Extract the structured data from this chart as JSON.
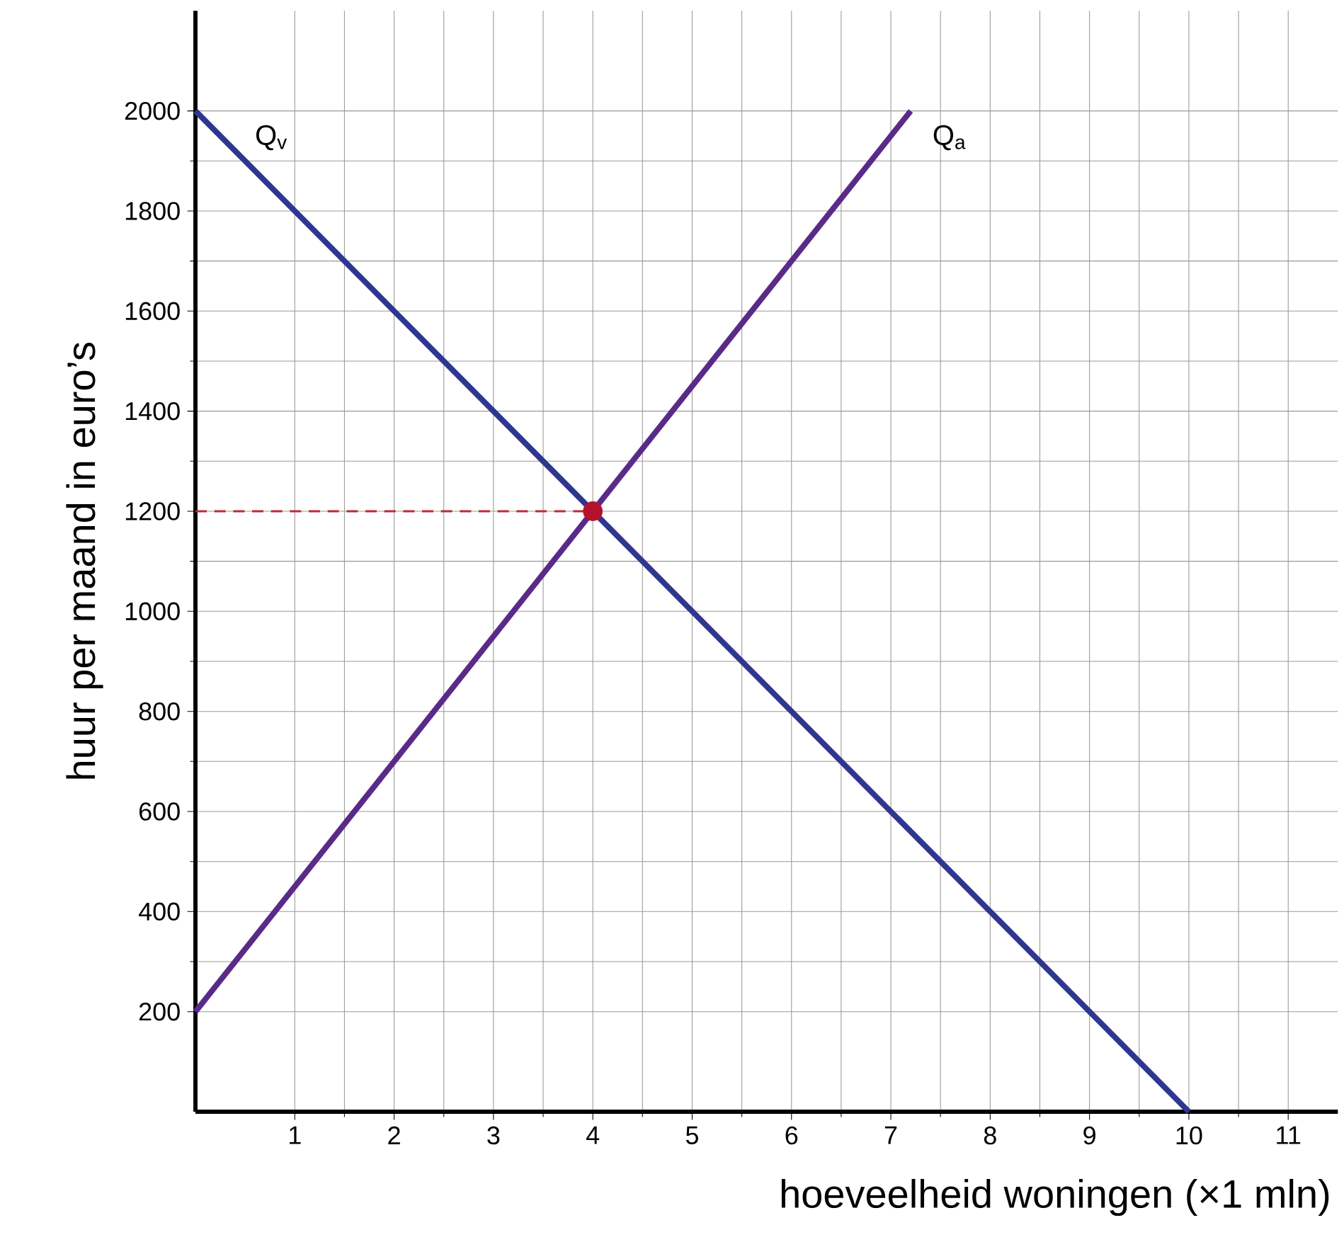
{
  "chart_data": {
    "type": "line",
    "xlabel": "hoeveelheid woningen (×1 mln)",
    "ylabel": "huur per maand in euro’s",
    "xlim": [
      0,
      11.5
    ],
    "ylim": [
      0,
      2200
    ],
    "xticks": [
      1,
      2,
      3,
      4,
      5,
      6,
      7,
      8,
      9,
      10,
      11
    ],
    "yticks": [
      200,
      400,
      600,
      800,
      1000,
      1200,
      1400,
      1600,
      1800,
      2000
    ],
    "grid": true,
    "series": [
      {
        "name": "Q$_{v}$",
        "color": "#2e3790",
        "x": [
          0,
          10
        ],
        "values": [
          2000,
          0
        ]
      },
      {
        "name": "Q$_{a}$",
        "color": "#5a2a88",
        "x": [
          0,
          7.2
        ],
        "values": [
          200,
          2000
        ]
      },
      {
        "type": "line",
        "line_style": "dashed",
        "color": "#c0283a",
        "x": [
          0,
          4
        ],
        "values": [
          1200,
          1200
        ]
      },
      {
        "type": "scatter",
        "marker": "circle",
        "color": "#b5122e",
        "x": [
          4
        ],
        "values": [
          1200
        ]
      }
    ]
  }
}
